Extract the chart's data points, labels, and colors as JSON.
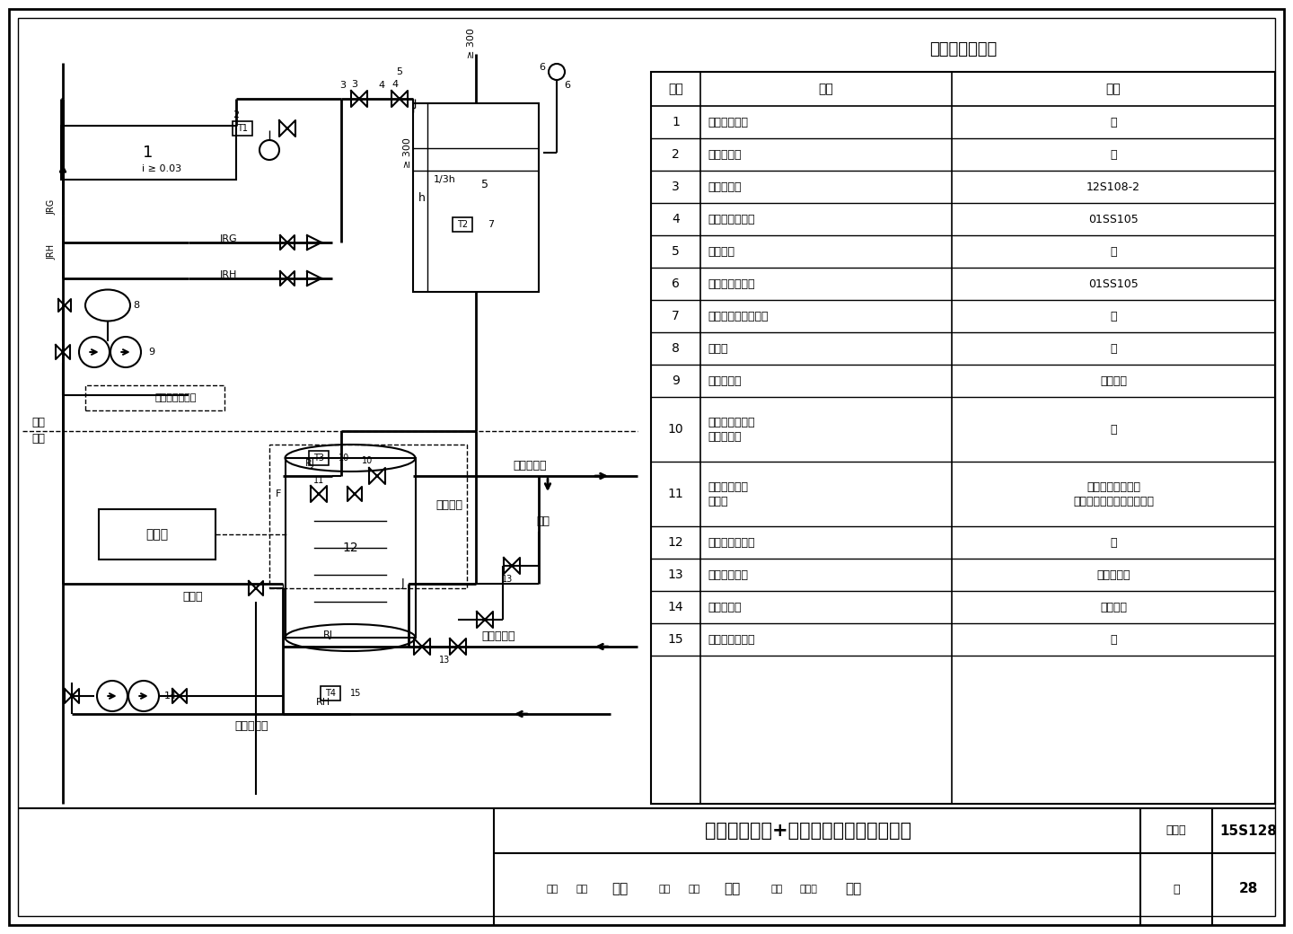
{
  "title": "强制循环水箱+水罐间接加热系统示意图",
  "fig_number": "15S128",
  "page": "28",
  "background_color": "#ffffff",
  "table_title": "主要设备材料表",
  "table_headers": [
    "序号",
    "名称",
    "备注"
  ],
  "table_data": [
    [
      "1",
      "太阳能集热器",
      "－"
    ],
    [
      "2",
      "温度传感器",
      "－"
    ],
    [
      "3",
      "真空破坏器",
      "12S108-2"
    ],
    [
      "4",
      "液压水位控制阀",
      "01SS105"
    ],
    [
      "5",
      "集热水箱",
      "－"
    ],
    [
      "6",
      "水箱水位信号阀",
      "01SS105"
    ],
    [
      "7",
      "集热水箱温度传感器",
      "－"
    ],
    [
      "8",
      "膨胀罐",
      "－"
    ],
    [
      "9",
      "集热循环泵",
      "一用一备"
    ],
    [
      "10",
      "容积式水加热器\n温度传感器",
      "－"
    ],
    [
      "11",
      "自力式温控阀\n电动阀",
      "全日自动控制系统\n定时（全日）自动控制系统"
    ],
    [
      "12",
      "容积式水加热器",
      "－"
    ],
    [
      "13",
      "闸阀（常闭）",
      "事故检修阀"
    ],
    [
      "14",
      "回水循环泵",
      "一用一备"
    ],
    [
      "15",
      "回水温度传感器",
      "－"
    ]
  ],
  "footer_label1": "图集号",
  "footer_label2": "页"
}
